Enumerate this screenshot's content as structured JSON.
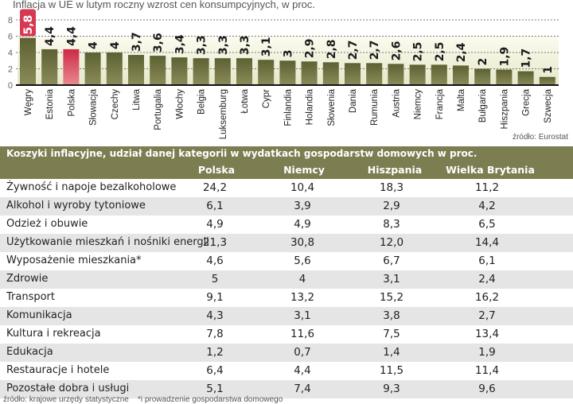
{
  "chart_data": {
    "type": "bar",
    "title": "Inflacja w UE w lutym roczny wzrost cen konsumpcyjnych, w proc.",
    "categories": [
      "Węgry",
      "Estonia",
      "Polska",
      "Słowacja",
      "Czechy",
      "Litwa",
      "Portugalia",
      "Włochy",
      "Belgia",
      "Luksemburg",
      "Łotwa",
      "Cypr",
      "Finlandia",
      "Holandia",
      "Słowenia",
      "Dania",
      "Rumunia",
      "Austria",
      "Niemcy",
      "Francja",
      "Malta",
      "Bułgaria",
      "Hiszpania",
      "Grecja",
      "Szwecja"
    ],
    "values": [
      5.8,
      4.4,
      4.4,
      4,
      4,
      3.7,
      3.6,
      3.4,
      3.3,
      3.3,
      3.3,
      3.1,
      3,
      2.9,
      2.8,
      2.7,
      2.7,
      2.6,
      2.5,
      2.5,
      2.4,
      2,
      1.9,
      1.7,
      1
    ],
    "labels": [
      "5,8",
      "4,4",
      "4,4",
      "4",
      "4",
      "3,7",
      "3,6",
      "3,4",
      "3,3",
      "3,3",
      "3,3",
      "3,1",
      "3",
      "2,9",
      "2,8",
      "2,7",
      "2,7",
      "2,6",
      "2,5",
      "2,5",
      "2,4",
      "2",
      "1,9",
      "1,7",
      "1"
    ],
    "highlight": [
      "Węgry",
      "Polska"
    ],
    "yticks": [
      "0",
      "2",
      "4",
      "6",
      "8"
    ],
    "ylim": [
      0,
      8
    ],
    "grid": true,
    "colors": {
      "bar": "#6b6d3a",
      "highlight": "#d63a52"
    },
    "source": "źródło: Eurostat"
  },
  "table": {
    "title": "Koszyki inflacyjne, udział danej kategorii w wydatkach gospodarstw domowych w proc.",
    "columns": [
      "Polska",
      "Niemcy",
      "Hiszpania",
      "Wielka Brytania"
    ],
    "rows": [
      {
        "label": "Żywność i napoje bezalkoholowe",
        "values": [
          "24,2",
          "10,4",
          "18,3",
          "11,2"
        ]
      },
      {
        "label": "Alkohol i wyroby tytoniowe",
        "values": [
          "6,1",
          "3,9",
          "2,9",
          "4,2"
        ]
      },
      {
        "label": "Odzież i obuwie",
        "values": [
          "4,9",
          "4,9",
          "8,3",
          "6,5"
        ]
      },
      {
        "label": "Użytkowanie mieszkań i nośniki energii",
        "values": [
          "21,3",
          "30,8",
          "12,0",
          "14,4"
        ]
      },
      {
        "label": "Wyposażenie mieszkania*",
        "values": [
          "4,6",
          "5,6",
          "6,7",
          "6,1"
        ]
      },
      {
        "label": "Zdrowie",
        "values": [
          "5",
          "4",
          "3,1",
          "2,4"
        ]
      },
      {
        "label": "Transport",
        "values": [
          "9,1",
          "13,2",
          "15,2",
          "16,2"
        ]
      },
      {
        "label": "Komunikacja",
        "values": [
          "4,3",
          "3,1",
          "3,8",
          "2,7"
        ]
      },
      {
        "label": "Kultura i rekreacja",
        "values": [
          "7,8",
          "11,6",
          "7,5",
          "13,4"
        ]
      },
      {
        "label": "Edukacja",
        "values": [
          "1,2",
          "0,7",
          "1,4",
          "1,9"
        ]
      },
      {
        "label": "Restauracje i hotele",
        "values": [
          "6,4",
          "4,4",
          "11,5",
          "11,4"
        ]
      },
      {
        "label": "Pozostałe dobra i usługi",
        "values": [
          "5,1",
          "7,4",
          "9,3",
          "9,6"
        ]
      }
    ],
    "footer": "źródło: krajowe urzędy statystyczne    *i prowadzenie gospodarstwa domowego"
  }
}
